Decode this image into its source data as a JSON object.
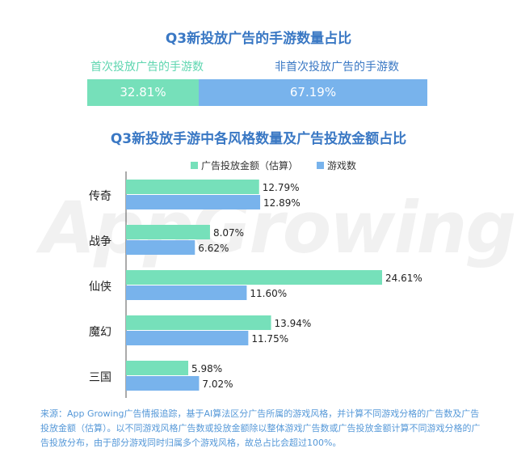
{
  "title1": "Q3新投放广告的手游数量占比",
  "split": {
    "first_label": "首次投放广告的手游数",
    "nonfirst_label": "非首次投放广告的手游数",
    "first_value": "32.81%",
    "nonfirst_value": "67.19%",
    "first_share": 32.81,
    "nonfirst_share": 67.19
  },
  "title2": "Q3新投放手游中各风格数量及广告投放金额占比",
  "watermark": "AppGrowing",
  "colors": {
    "spend": "#76e0ba",
    "games": "#78b3ec",
    "title": "#3a78c4"
  },
  "chart_data": {
    "type": "bar",
    "orientation": "horizontal",
    "categories": [
      "传奇",
      "战争",
      "仙侠",
      "魔幻",
      "三国"
    ],
    "series": [
      {
        "name": "广告投放金额（估算）",
        "values": [
          12.79,
          8.07,
          24.61,
          13.94,
          5.98
        ]
      },
      {
        "name": "游戏数",
        "values": [
          12.89,
          6.62,
          11.6,
          11.75,
          7.02
        ]
      }
    ],
    "value_labels": [
      [
        "12.79%",
        "8.07%",
        "24.61%",
        "13.94%",
        "5.98%"
      ],
      [
        "12.89%",
        "6.62%",
        "11.60%",
        "11.75%",
        "7.02%"
      ]
    ],
    "legend_position": "top"
  },
  "source": "来源：App Growing广告情报追踪，基于AI算法区分广告所属的游戏风格，并计算不同游戏分格的广告数及广告投放金额（估算）。以不同游戏风格广告数或投放金额除以整体游戏广告数或广告投放金额计算不同游戏分格的广告投放分布，由于部分游戏同时归属多个游戏风格，故总占比会超过100%。"
}
